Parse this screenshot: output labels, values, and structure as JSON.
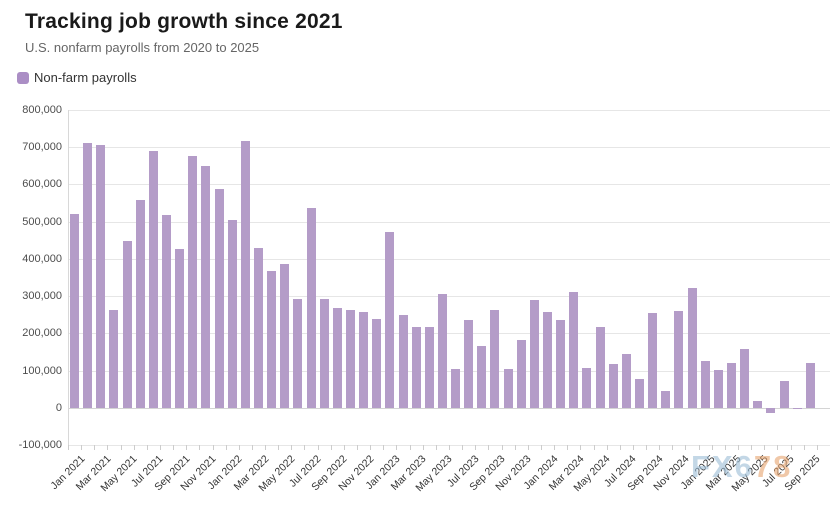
{
  "header": {
    "title": "Tracking job growth since 2021",
    "subtitle": "U.S. nonfarm payrolls from 2020 to 2025"
  },
  "legend": {
    "label": "Non-farm payrolls",
    "swatch_color": "#ab8ec5"
  },
  "watermark": {
    "part1": "FX6",
    "part2": "78"
  },
  "colors": {
    "bar": "#b49cc8",
    "grid": "#e6e6e6",
    "zero_line": "#d4d4d4",
    "axis_text": "#4d4d4d",
    "x_label_text": "#333333"
  },
  "chart_data": {
    "type": "bar",
    "title": "Tracking job growth since 2021",
    "subtitle": "U.S. nonfarm payrolls from 2020 to 2025",
    "series_name": "Non-farm payrolls",
    "legend_position": "top-left",
    "grid": true,
    "ylim": [
      -100000,
      800000
    ],
    "y_tick_step": 100000,
    "y_ticks": [
      {
        "value": 800000,
        "label": "800,000"
      },
      {
        "value": 700000,
        "label": "700,000"
      },
      {
        "value": 600000,
        "label": "600,000"
      },
      {
        "value": 500000,
        "label": "500,000"
      },
      {
        "value": 400000,
        "label": "400,000"
      },
      {
        "value": 300000,
        "label": "300,000"
      },
      {
        "value": 200000,
        "label": "200,000"
      },
      {
        "value": 100000,
        "label": "100,000"
      },
      {
        "value": 0,
        "label": "0"
      },
      {
        "value": -100000,
        "label": "-100,000"
      }
    ],
    "x_label_every": 2,
    "categories": [
      "Jan 2021",
      "Feb 2021",
      "Mar 2021",
      "Apr 2021",
      "May 2021",
      "Jun 2021",
      "Jul 2021",
      "Aug 2021",
      "Sep 2021",
      "Oct 2021",
      "Nov 2021",
      "Dec 2021",
      "Jan 2022",
      "Feb 2022",
      "Mar 2022",
      "Apr 2022",
      "May 2022",
      "Jun 2022",
      "Jul 2022",
      "Aug 2022",
      "Sep 2022",
      "Oct 2022",
      "Nov 2022",
      "Dec 2022",
      "Jan 2023",
      "Feb 2023",
      "Mar 2023",
      "Apr 2023",
      "May 2023",
      "Jun 2023",
      "Jul 2023",
      "Aug 2023",
      "Sep 2023",
      "Oct 2023",
      "Nov 2023",
      "Dec 2023",
      "Jan 2024",
      "Feb 2024",
      "Mar 2024",
      "Apr 2024",
      "May 2024",
      "Jun 2024",
      "Jul 2024",
      "Aug 2024",
      "Sep 2024",
      "Oct 2024",
      "Nov 2024",
      "Dec 2024",
      "Jan 2025",
      "Feb 2025",
      "Mar 2025",
      "Apr 2025",
      "May 2025",
      "Jun 2025",
      "Jul 2025",
      "Aug 2025",
      "Sep 2025"
    ],
    "values": [
      520000,
      712000,
      705000,
      263000,
      447000,
      559000,
      691000,
      517000,
      426000,
      677000,
      649000,
      588000,
      505000,
      717000,
      428000,
      368000,
      386000,
      293000,
      537000,
      292000,
      269000,
      263000,
      256000,
      239000,
      472000,
      248000,
      217000,
      217000,
      306000,
      105000,
      236000,
      165000,
      262000,
      105000,
      182000,
      290000,
      256000,
      236000,
      310000,
      108000,
      216000,
      118000,
      144000,
      78000,
      254000,
      44000,
      261000,
      323000,
      125000,
      102000,
      120000,
      158000,
      19000,
      -13000,
      72000,
      -4000,
      119000
    ]
  }
}
